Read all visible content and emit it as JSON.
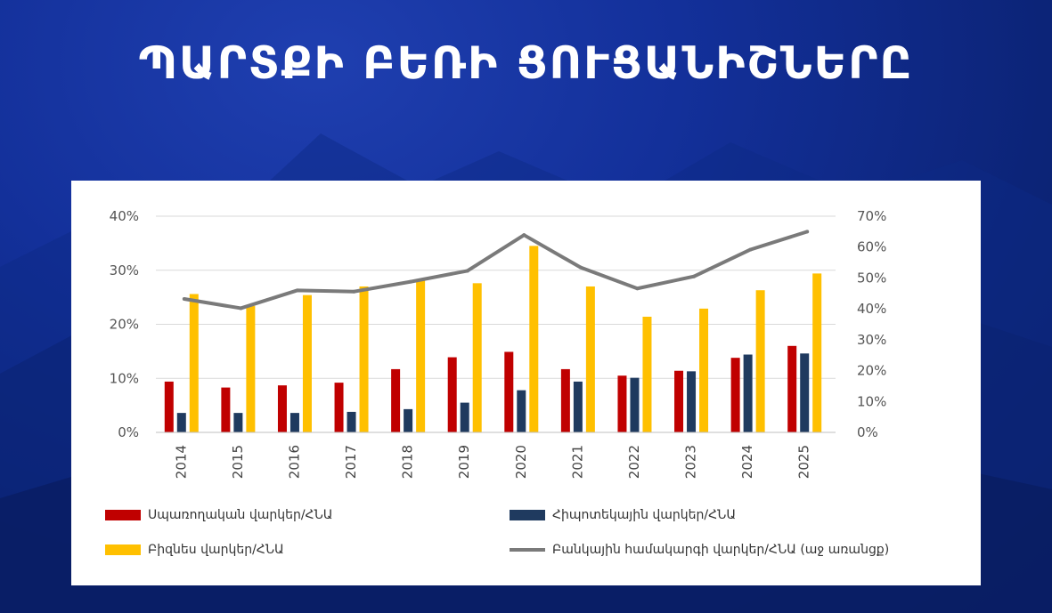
{
  "slide": {
    "title": "ՊԱՐՏՔԻ ԲԵՌԻ ՑՈՒՑԱՆԻՇՆԵՐԸ"
  },
  "colors": {
    "consumer": "#c00000",
    "mortgage": "#1f3a5f",
    "business": "#ffc000",
    "banking": "#7a7a7a"
  },
  "chart_data": {
    "type": "bar",
    "categories": [
      "2014",
      "2015",
      "2016",
      "2017",
      "2018",
      "2019",
      "2020",
      "2021",
      "2022",
      "2023",
      "2024",
      "2025"
    ],
    "y_left": {
      "ylim": [
        0,
        40
      ],
      "ticks": [
        "0%",
        "10%",
        "20%",
        "30%",
        "40%"
      ]
    },
    "y_right": {
      "ylim": [
        0,
        70
      ],
      "ticks": [
        "0%",
        "10%",
        "20%",
        "30%",
        "40%",
        "50%",
        "60%",
        "70%"
      ]
    },
    "grid": true,
    "legend_position": "bottom",
    "series": [
      {
        "name": "Սպառողական վարկեր/ՀՆԱ",
        "type": "bar",
        "axis": "left",
        "values": [
          9.4,
          8.3,
          8.7,
          9.2,
          11.7,
          13.9,
          14.9,
          11.7,
          10.5,
          11.4,
          13.8,
          16.0
        ]
      },
      {
        "name": "Հիպոտեկային վարկեր/ՀՆԱ",
        "type": "bar",
        "axis": "left",
        "values": [
          3.6,
          3.6,
          3.6,
          3.8,
          4.3,
          5.5,
          7.8,
          9.4,
          10.1,
          11.3,
          14.4,
          14.6
        ]
      },
      {
        "name": "Բիզնես վարկեր/ՀՆԱ",
        "type": "bar",
        "axis": "left",
        "values": [
          25.6,
          23.4,
          25.4,
          27.0,
          28.1,
          27.6,
          34.5,
          27.0,
          21.4,
          22.9,
          26.3,
          29.4
        ]
      },
      {
        "name": "Բանկային համակարգի վարկեր/ՀՆԱ (աջ առանցք)",
        "type": "line",
        "axis": "right",
        "values": [
          43.2,
          40.2,
          46.0,
          45.6,
          48.8,
          52.3,
          63.9,
          53.4,
          46.6,
          50.5,
          59.2,
          65.0
        ]
      }
    ]
  }
}
